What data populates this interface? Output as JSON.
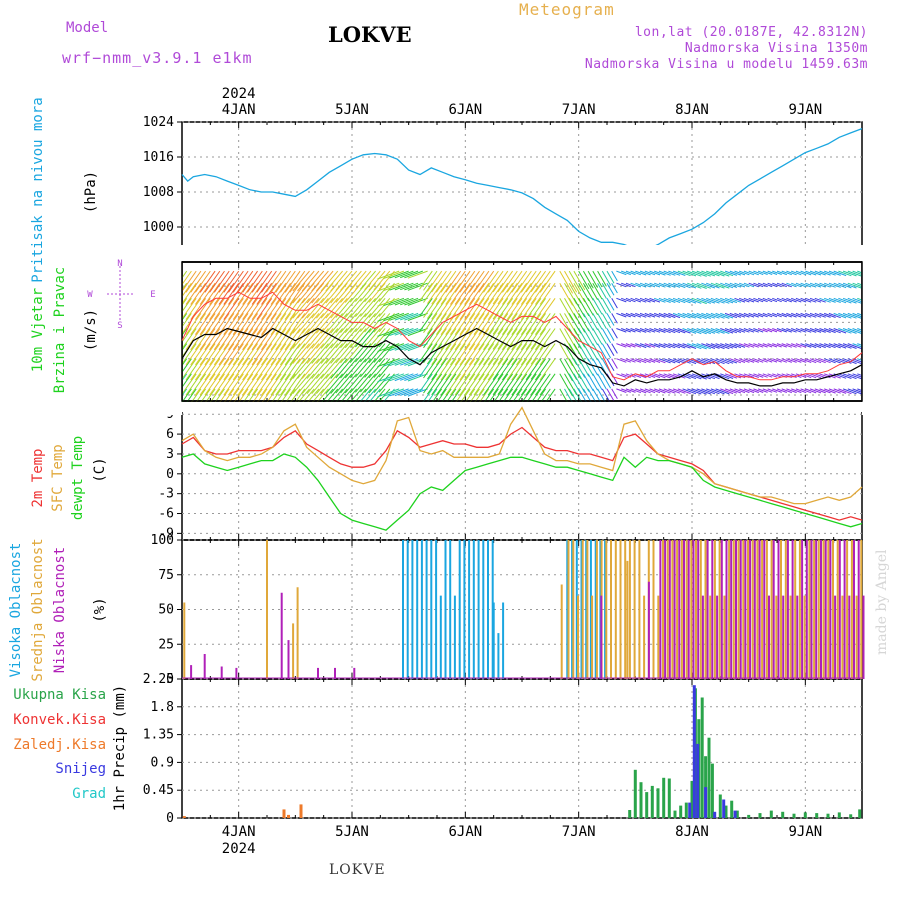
{
  "header": {
    "model_label": "Model",
    "model_name": "wrf−nmm_v3.9.1  e1km",
    "location_title": "LOKVE",
    "meteogram_label": "Meteogram",
    "lonlat": "lon,lat (20.0187E, 42.8312N)",
    "elevation": "Nadmorska Visina 1350m",
    "model_elevation": "Nadmorska Visina u modelu 1459.63m"
  },
  "footer": {
    "location": "LOKVE",
    "credit": "made by Angel"
  },
  "x_axis": {
    "year": "2024",
    "days": [
      "4JAN",
      "5JAN",
      "6JAN",
      "7JAN",
      "8JAN",
      "9JAN"
    ],
    "range_days": [
      3.5,
      9.5
    ]
  },
  "colors": {
    "pressure": "#1aa6e0",
    "temp2m": "#ee3333",
    "sfctemp": "#e0a83a",
    "dewpt": "#1ed21e",
    "cloud_high": "#1aa6e0",
    "cloud_mid": "#e0a83a",
    "cloud_low": "#b020b8",
    "precip_total": "#2aa44a",
    "precip_conv": "#ee3333",
    "precip_frozen": "#ee7a2a",
    "precip_snow": "#3a3ae0",
    "precip_graupel": "#22c8c8"
  },
  "chart_data": [
    {
      "type": "line",
      "panel": "pressure",
      "ylabel_name": "Pritisak na nivou mora",
      "ylabel_unit": "(hPa)",
      "ylim": [
        992,
        1024
      ],
      "yticks": [
        1000,
        1008,
        1016,
        1024
      ],
      "grid": true,
      "series": [
        {
          "name": "Pritisak na nivou mora",
          "x": [
            3.5,
            3.55,
            3.6,
            3.7,
            3.8,
            3.9,
            4.0,
            4.1,
            4.2,
            4.3,
            4.4,
            4.5,
            4.6,
            4.7,
            4.8,
            4.9,
            5.0,
            5.1,
            5.2,
            5.3,
            5.4,
            5.5,
            5.6,
            5.7,
            5.8,
            5.9,
            6.0,
            6.1,
            6.2,
            6.3,
            6.4,
            6.5,
            6.6,
            6.7,
            6.8,
            6.9,
            7.0,
            7.1,
            7.2,
            7.3,
            7.4,
            7.5,
            7.6,
            7.7,
            7.8,
            7.9,
            8.0,
            8.1,
            8.2,
            8.3,
            8.4,
            8.5,
            8.6,
            8.7,
            8.8,
            8.9,
            9.0,
            9.1,
            9.2,
            9.3,
            9.4,
            9.5
          ],
          "values": [
            1012.0,
            1010.5,
            1011.5,
            1012.0,
            1011.5,
            1010.5,
            1009.5,
            1008.5,
            1008.0,
            1008.0,
            1007.5,
            1007.0,
            1008.5,
            1010.5,
            1012.5,
            1014.0,
            1015.5,
            1016.5,
            1016.8,
            1016.5,
            1015.5,
            1013.0,
            1012.0,
            1013.5,
            1012.5,
            1011.5,
            1010.8,
            1010.0,
            1009.5,
            1009.0,
            1008.5,
            1007.8,
            1006.5,
            1004.5,
            1003.0,
            1001.5,
            999.0,
            997.5,
            996.5,
            996.5,
            996.0,
            995.0,
            994.8,
            996.0,
            997.5,
            998.5,
            999.5,
            1001.0,
            1003.0,
            1005.5,
            1007.5,
            1009.5,
            1011.0,
            1012.5,
            1014.0,
            1015.5,
            1017.0,
            1018.0,
            1019.0,
            1020.5,
            1021.5,
            1022.5
          ]
        }
      ]
    },
    {
      "type": "line",
      "panel": "wind",
      "ylabel_name_1": "10m Vjetar",
      "ylabel_name_2": "Brzina i Pravac",
      "ylabel_unit": "(m/s)",
      "compass": "N, W, E, S",
      "ylim": [
        -1,
        22
      ],
      "yticks": [
        0,
        6,
        12,
        18
      ],
      "grid": true,
      "series": [
        {
          "name": "speed",
          "x": [
            3.5,
            3.6,
            3.7,
            3.8,
            3.9,
            4.0,
            4.1,
            4.2,
            4.3,
            4.4,
            4.5,
            4.6,
            4.7,
            4.8,
            4.9,
            5.0,
            5.1,
            5.2,
            5.3,
            5.4,
            5.5,
            5.6,
            5.7,
            5.8,
            5.9,
            6.0,
            6.1,
            6.2,
            6.3,
            6.4,
            6.5,
            6.6,
            6.7,
            6.8,
            6.9,
            7.0,
            7.1,
            7.2,
            7.3,
            7.4,
            7.5,
            7.6,
            7.7,
            7.8,
            7.9,
            8.0,
            8.1,
            8.2,
            8.3,
            8.4,
            8.5,
            8.6,
            8.7,
            8.8,
            8.9,
            9.0,
            9.1,
            9.2,
            9.3,
            9.4,
            9.5
          ],
          "values": [
            6,
            9,
            10,
            10,
            11,
            10.5,
            10,
            9.5,
            11,
            10,
            9,
            10,
            11,
            10,
            9,
            9,
            8,
            8,
            9,
            8,
            6,
            5,
            7,
            8,
            9,
            10,
            11,
            10,
            9,
            8,
            9,
            9,
            8,
            9,
            8,
            6,
            5,
            4.5,
            2,
            1.5,
            2.5,
            2,
            2.5,
            2.5,
            3,
            4,
            3,
            3.5,
            2.5,
            2,
            2,
            1.5,
            1.5,
            2,
            2,
            2.5,
            2.5,
            3,
            3.5,
            4,
            5
          ]
        },
        {
          "name": "gust",
          "x": [
            3.5,
            3.6,
            3.7,
            3.8,
            3.9,
            4.0,
            4.1,
            4.2,
            4.3,
            4.4,
            4.5,
            4.6,
            4.7,
            4.8,
            4.9,
            5.0,
            5.1,
            5.2,
            5.3,
            5.4,
            5.5,
            5.6,
            5.7,
            5.8,
            5.9,
            6.0,
            6.1,
            6.2,
            6.3,
            6.4,
            6.5,
            6.6,
            6.7,
            6.8,
            6.9,
            7.0,
            7.1,
            7.2,
            7.3,
            7.4,
            7.5,
            7.6,
            7.7,
            7.8,
            7.9,
            8.0,
            8.1,
            8.2,
            8.3,
            8.4,
            8.5,
            8.6,
            8.7,
            8.8,
            8.9,
            9.0,
            9.1,
            9.2,
            9.3,
            9.4,
            9.5
          ],
          "values": [
            9,
            13,
            15,
            16,
            16,
            17,
            16,
            16,
            17,
            15,
            14,
            14,
            15,
            14,
            13,
            12,
            12,
            11,
            12,
            11,
            9,
            8,
            10,
            12,
            13,
            14,
            15,
            14,
            13,
            12,
            13,
            13,
            12,
            13,
            11,
            9,
            8,
            7,
            3,
            2.5,
            3.5,
            3,
            4,
            4,
            5,
            6,
            5,
            5.5,
            4,
            3,
            3,
            2.5,
            2.5,
            3,
            3,
            3.5,
            3.5,
            4,
            5,
            5.5,
            7
          ]
        }
      ]
    },
    {
      "type": "line",
      "panel": "temperature",
      "ylabel_names": [
        "2m Temp",
        "SFC Temp",
        "dewpt Temp"
      ],
      "ylabel_unit": "(C)",
      "ylim": [
        -10,
        11
      ],
      "yticks": [
        -9,
        -6,
        -3,
        0,
        3,
        6,
        9
      ],
      "grid": true,
      "x": [
        3.5,
        3.6,
        3.7,
        3.8,
        3.9,
        4.0,
        4.1,
        4.2,
        4.3,
        4.4,
        4.5,
        4.6,
        4.7,
        4.8,
        4.9,
        5.0,
        5.1,
        5.2,
        5.3,
        5.4,
        5.5,
        5.6,
        5.7,
        5.8,
        5.9,
        6.0,
        6.1,
        6.2,
        6.3,
        6.4,
        6.5,
        6.6,
        6.7,
        6.8,
        6.9,
        7.0,
        7.1,
        7.2,
        7.3,
        7.4,
        7.5,
        7.6,
        7.7,
        7.8,
        7.9,
        8.0,
        8.1,
        8.2,
        8.3,
        8.4,
        8.5,
        8.6,
        8.7,
        8.8,
        8.9,
        9.0,
        9.1,
        9.2,
        9.3,
        9.4,
        9.5
      ],
      "series": [
        {
          "name": "2m Temp",
          "values": [
            4.5,
            5.5,
            3.5,
            3.0,
            3.0,
            3.5,
            3.5,
            3.5,
            4.0,
            5.5,
            6.5,
            4.5,
            3.5,
            2.5,
            1.5,
            1.0,
            1.0,
            1.5,
            3.5,
            6.5,
            5.5,
            4.0,
            4.5,
            5.0,
            4.5,
            4.5,
            4.0,
            4.0,
            4.5,
            6.0,
            7.0,
            5.5,
            4.0,
            3.5,
            3.5,
            3.0,
            3.0,
            2.5,
            2.0,
            5.5,
            6.0,
            4.5,
            3.0,
            2.5,
            2.0,
            1.5,
            0.5,
            -1.5,
            -2.0,
            -2.5,
            -3.0,
            -3.5,
            -4.0,
            -4.5,
            -5.0,
            -5.5,
            -6.0,
            -6.5,
            -7.0,
            -6.5,
            -7.0
          ]
        },
        {
          "name": "SFC Temp",
          "values": [
            5.0,
            6.0,
            3.5,
            2.5,
            2.0,
            2.5,
            2.5,
            3.0,
            4.0,
            6.5,
            7.5,
            4.0,
            2.5,
            1.0,
            0.0,
            -1.0,
            -1.5,
            -1.0,
            2.0,
            8.0,
            8.5,
            3.5,
            3.0,
            3.5,
            2.5,
            2.5,
            2.5,
            2.5,
            3.0,
            7.5,
            10.0,
            6.5,
            3.0,
            2.0,
            2.0,
            1.5,
            1.5,
            1.0,
            0.5,
            7.5,
            8.0,
            5.0,
            3.0,
            2.0,
            1.5,
            1.0,
            0.0,
            -1.5,
            -2.0,
            -2.5,
            -3.0,
            -3.5,
            -3.5,
            -4.0,
            -4.5,
            -4.5,
            -4.0,
            -3.5,
            -4.0,
            -3.5,
            -2.0
          ]
        },
        {
          "name": "dewpt Temp",
          "values": [
            2.5,
            3.0,
            1.5,
            1.0,
            0.5,
            1.0,
            1.5,
            2.0,
            2.0,
            3.0,
            2.5,
            1.0,
            -1.0,
            -3.5,
            -6.0,
            -7.0,
            -7.5,
            -8.0,
            -8.5,
            -7.0,
            -5.5,
            -3.0,
            -2.0,
            -2.5,
            -1.0,
            0.5,
            1.0,
            1.5,
            2.0,
            2.5,
            2.5,
            2.0,
            1.5,
            1.0,
            1.0,
            0.5,
            0.0,
            -0.5,
            -1.0,
            2.5,
            1.0,
            2.5,
            2.0,
            2.0,
            1.5,
            1.0,
            -1.0,
            -2.0,
            -2.5,
            -3.0,
            -3.5,
            -4.0,
            -4.5,
            -5.0,
            -5.5,
            -6.0,
            -6.5,
            -7.0,
            -7.5,
            -8.0,
            -7.5
          ]
        }
      ]
    },
    {
      "type": "bar",
      "panel": "cloud",
      "ylabel_names": [
        "Visoka Oblacnost",
        "Srednja Oblacnost",
        "Niska Oblacnost"
      ],
      "ylabel_unit": "(%)",
      "ylim": [
        0,
        100
      ],
      "yticks": [
        0,
        25,
        50,
        75,
        100
      ],
      "grid": true,
      "segments": [
        {
          "name": "Visoka Oblacnost",
          "x_start": 5.45,
          "x_end": 6.25,
          "value": 100
        },
        {
          "name": "Visoka Oblacnost",
          "x_start": 6.25,
          "x_end": 6.35,
          "value": 55
        },
        {
          "name": "Visoka Oblacnost",
          "x_start": 6.9,
          "x_end": 7.25,
          "value": 100
        },
        {
          "name": "Srednja Oblacnost",
          "x_start": 6.9,
          "x_end": 9.5,
          "value": 100
        },
        {
          "name": "Niska Oblacnost",
          "x_start": 7.7,
          "x_end": 9.5,
          "value": 100
        }
      ],
      "spikes": [
        {
          "name": "Srednja Oblacnost",
          "x": 3.52,
          "value": 55
        },
        {
          "name": "Niska Oblacnost",
          "x": 3.58,
          "value": 10
        },
        {
          "name": "Niska Oblacnost",
          "x": 3.7,
          "value": 18
        },
        {
          "name": "Niska Oblacnost",
          "x": 3.85,
          "value": 9
        },
        {
          "name": "Niska Oblacnost",
          "x": 3.98,
          "value": 8
        },
        {
          "name": "Srednja Oblacnost",
          "x": 4.25,
          "value": 100
        },
        {
          "name": "Niska Oblacnost",
          "x": 4.38,
          "value": 62
        },
        {
          "name": "Niska Oblacnost",
          "x": 4.44,
          "value": 28
        },
        {
          "name": "Srednja Oblacnost",
          "x": 4.48,
          "value": 40
        },
        {
          "name": "Srednja Oblacnost",
          "x": 4.52,
          "value": 66
        },
        {
          "name": "Niska Oblacnost",
          "x": 4.7,
          "value": 8
        },
        {
          "name": "Niska Oblacnost",
          "x": 4.85,
          "value": 8
        },
        {
          "name": "Niska Oblacnost",
          "x": 5.02,
          "value": 8
        },
        {
          "name": "Srednja Oblacnost",
          "x": 6.85,
          "value": 68
        },
        {
          "name": "Niska Oblacnost",
          "x": 7.2,
          "value": 60
        },
        {
          "name": "Srednja Oblacnost",
          "x": 7.43,
          "value": 85
        },
        {
          "name": "Niska Oblacnost",
          "x": 7.62,
          "value": 70
        }
      ]
    },
    {
      "type": "bar",
      "panel": "precip",
      "ylabel_names": [
        "Ukupna Kisa",
        "Konvek.Kisa",
        "Zaledj.Kisa",
        "Snijeg",
        "Grad"
      ],
      "ylabel_unit": "1hr Precip (mm)",
      "ylim": [
        0,
        2.25
      ],
      "yticks": [
        0,
        0.45,
        0.9,
        1.35,
        1.8,
        2.25
      ],
      "grid": true,
      "series": [
        {
          "name": "Ukupna Kisa",
          "x": [
            3.52,
            4.4,
            4.44,
            4.55,
            7.45,
            7.5,
            7.55,
            7.6,
            7.65,
            7.7,
            7.75,
            7.8,
            7.85,
            7.9,
            7.95,
            8.0,
            8.03,
            8.06,
            8.09,
            8.12,
            8.15,
            8.18,
            8.25,
            8.3,
            8.35,
            8.4,
            8.5,
            8.6,
            8.7,
            8.8,
            8.9,
            9.0,
            9.1,
            9.2,
            9.3,
            9.4,
            9.48
          ],
          "values": [
            0.03,
            0.14,
            0.05,
            0.22,
            0.13,
            0.78,
            0.58,
            0.42,
            0.52,
            0.48,
            0.65,
            0.64,
            0.12,
            0.2,
            0.25,
            0.6,
            2.1,
            1.6,
            1.95,
            1.0,
            1.3,
            0.88,
            0.38,
            0.2,
            0.28,
            0.12,
            0.05,
            0.08,
            0.12,
            0.1,
            0.07,
            0.09,
            0.08,
            0.07,
            0.09,
            0.06,
            0.14
          ]
        },
        {
          "name": "Snijeg",
          "x": [
            7.98,
            8.02,
            8.05,
            8.12,
            8.2,
            8.28,
            8.38
          ],
          "values": [
            0.25,
            2.15,
            1.2,
            0.5,
            0.1,
            0.3,
            0.12
          ]
        }
      ]
    }
  ]
}
